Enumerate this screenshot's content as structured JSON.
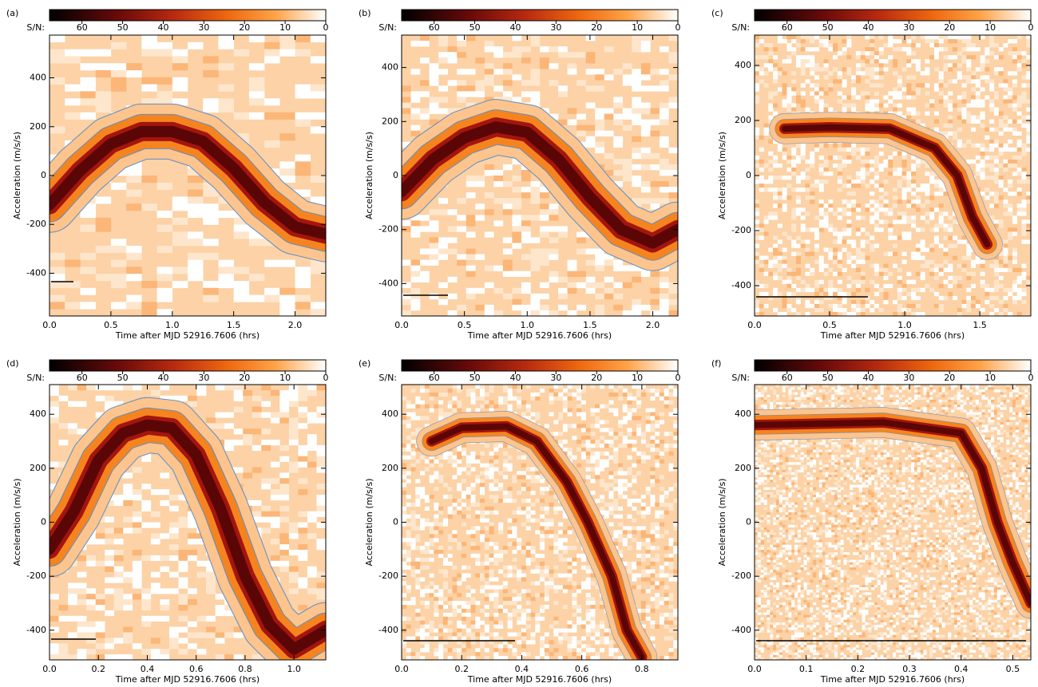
{
  "chart_data": [
    {
      "type": "heatmap",
      "label": "(a)",
      "colorbar_label": "S/N:",
      "clim": [
        68,
        0
      ],
      "cticks": [
        60,
        50,
        40,
        30,
        20,
        10,
        0
      ],
      "ylabel": "Acceleration (m/s/s)",
      "xlabel": "Time after MJD 52916.7606 (hrs)",
      "xlim": [
        0,
        2.25
      ],
      "xticks": [
        {
          "value": 0,
          "label": "0.0"
        },
        {
          "value": 0.5,
          "label": "0.5"
        },
        {
          "value": 1,
          "label": "1.0"
        },
        {
          "value": 1.5,
          "label": "1.5"
        },
        {
          "value": 2,
          "label": "2.0"
        }
      ],
      "ylim": [
        -575,
        575
      ],
      "yticks": [
        400,
        200,
        0,
        -200,
        -400
      ],
      "ridge": {
        "x": [
          0,
          0.25,
          0.5,
          0.75,
          1.0,
          1.25,
          1.5,
          1.75,
          2.0,
          2.25
        ],
        "y": [
          -120,
          20,
          130,
          180,
          180,
          140,
          30,
          -110,
          -210,
          -240
        ]
      }
    },
    {
      "type": "heatmap",
      "label": "(b)",
      "colorbar_label": "S/N:",
      "clim": [
        68,
        0
      ],
      "cticks": [
        60,
        50,
        40,
        30,
        20,
        10,
        0
      ],
      "ylabel": "Acceleration (m/s/s)",
      "xlabel": "Time after MJD 52916.7606 (hrs)",
      "xlim": [
        0,
        2.2
      ],
      "xticks": [
        {
          "value": 0,
          "label": "0.0"
        },
        {
          "value": 0.5,
          "label": "0.5"
        },
        {
          "value": 1,
          "label": "1.0"
        },
        {
          "value": 1.5,
          "label": "1.5"
        },
        {
          "value": 2,
          "label": "2.0"
        }
      ],
      "ylim": [
        -520,
        520
      ],
      "yticks": [
        400,
        200,
        0,
        -200,
        -400
      ],
      "ridge": {
        "x": [
          0,
          0.25,
          0.5,
          0.75,
          1.0,
          1.25,
          1.5,
          1.75,
          2.0,
          2.2
        ],
        "y": [
          -60,
          60,
          140,
          180,
          160,
          60,
          -80,
          -200,
          -250,
          -200
        ]
      }
    },
    {
      "type": "heatmap",
      "label": "(c)",
      "colorbar_label": "S/N:",
      "clim": [
        68,
        0
      ],
      "cticks": [
        60,
        50,
        40,
        30,
        20,
        10,
        0
      ],
      "ylabel": "Acceleration (m/s/s)",
      "xlabel": "Time after MJD 52916.7606 (hrs)",
      "xlim": [
        0,
        1.84
      ],
      "xticks": [
        {
          "value": 0,
          "label": "0.0"
        },
        {
          "value": 0.5,
          "label": "0.5"
        },
        {
          "value": 1,
          "label": "1.0"
        },
        {
          "value": 1.5,
          "label": "1.5"
        }
      ],
      "ylim": [
        -510,
        510
      ],
      "yticks": [
        400,
        200,
        0,
        -200,
        -400
      ],
      "ridge": {
        "x": [
          0.2,
          0.5,
          0.9,
          1.2,
          1.35,
          1.45,
          1.55
        ],
        "y": [
          170,
          175,
          170,
          100,
          0,
          -150,
          -250
        ]
      }
    },
    {
      "type": "heatmap",
      "label": "(d)",
      "colorbar_label": "S/N:",
      "clim": [
        68,
        0
      ],
      "cticks": [
        60,
        50,
        40,
        30,
        20,
        10,
        0
      ],
      "ylabel": "Acceleration (m/s/s)",
      "xlabel": "Time after MJD 52916.7606 (hrs)",
      "xlim": [
        0,
        1.13
      ],
      "xticks": [
        {
          "value": 0,
          "label": "0.0"
        },
        {
          "value": 0.2,
          "label": "0.2"
        },
        {
          "value": 0.4,
          "label": "0.4"
        },
        {
          "value": 0.6,
          "label": "0.6"
        },
        {
          "value": 0.8,
          "label": "0.8"
        },
        {
          "value": 1,
          "label": "1.0"
        }
      ],
      "ylim": [
        -510,
        510
      ],
      "yticks": [
        400,
        200,
        0,
        -200,
        -400
      ],
      "ridge": {
        "x": [
          0,
          0.1,
          0.2,
          0.3,
          0.4,
          0.5,
          0.6,
          0.7,
          0.8,
          0.9,
          1.0,
          1.13
        ],
        "y": [
          -100,
          40,
          230,
          330,
          360,
          350,
          250,
          50,
          -200,
          -380,
          -470,
          -400
        ]
      }
    },
    {
      "type": "heatmap",
      "label": "(e)",
      "colorbar_label": "S/N:",
      "clim": [
        68,
        0
      ],
      "cticks": [
        60,
        50,
        40,
        30,
        20,
        10,
        0
      ],
      "ylabel": "Acceleration (m/s/s)",
      "xlabel": "Time after MJD 52916.7606 (hrs)",
      "xlim": [
        0,
        0.92
      ],
      "xticks": [
        {
          "value": 0,
          "label": "0.0"
        },
        {
          "value": 0.2,
          "label": "0.2"
        },
        {
          "value": 0.4,
          "label": "0.4"
        },
        {
          "value": 0.6,
          "label": "0.6"
        },
        {
          "value": 0.8,
          "label": "0.8"
        }
      ],
      "ylim": [
        -510,
        510
      ],
      "yticks": [
        400,
        200,
        0,
        -200,
        -400
      ],
      "ridge": {
        "x": [
          0.1,
          0.2,
          0.35,
          0.45,
          0.55,
          0.62,
          0.7,
          0.75,
          0.8
        ],
        "y": [
          300,
          350,
          355,
          300,
          150,
          0,
          -200,
          -400,
          -500
        ]
      }
    },
    {
      "type": "heatmap",
      "label": "(f)",
      "colorbar_label": "S/N:",
      "clim": [
        68,
        0
      ],
      "cticks": [
        60,
        50,
        40,
        30,
        20,
        10,
        0
      ],
      "ylabel": "Acceleration (m/s/s)",
      "xlabel": "Time after MJD 52916.7606 (hrs)",
      "xlim": [
        0,
        0.535
      ],
      "xticks": [
        {
          "value": 0,
          "label": "0.0"
        },
        {
          "value": 0.1,
          "label": "0.1"
        },
        {
          "value": 0.2,
          "label": "0.2"
        },
        {
          "value": 0.3,
          "label": "0.3"
        },
        {
          "value": 0.4,
          "label": "0.4"
        },
        {
          "value": 0.5,
          "label": "0.5"
        }
      ],
      "ylim": [
        -510,
        510
      ],
      "yticks": [
        400,
        200,
        0,
        -200,
        -400
      ],
      "ridge": {
        "x": [
          0,
          0.25,
          0.4,
          0.44,
          0.47,
          0.5,
          0.535
        ],
        "y": [
          360,
          370,
          330,
          200,
          0,
          -150,
          -300
        ]
      }
    }
  ]
}
